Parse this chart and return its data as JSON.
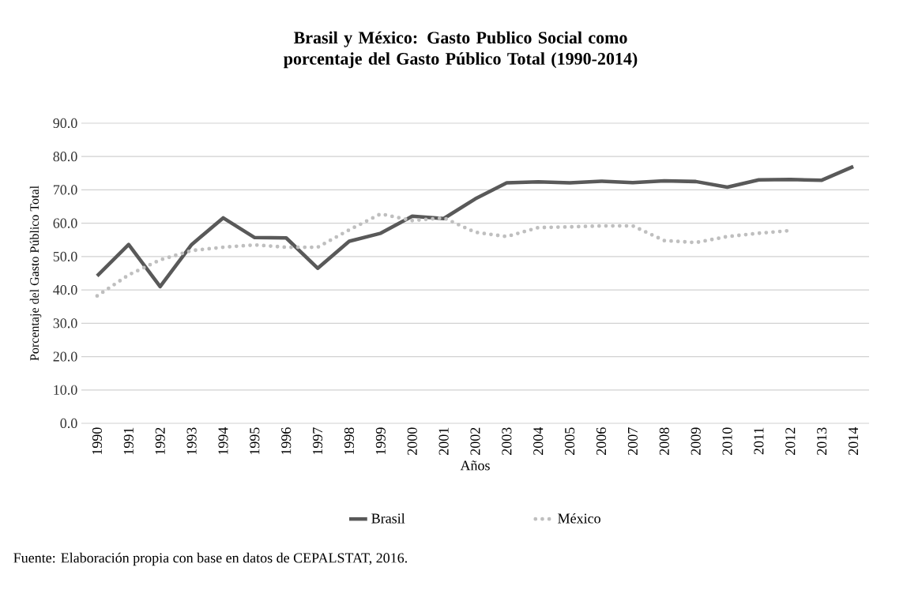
{
  "chart_data": {
    "type": "line",
    "title": "Brasil y México: Gasto Publico Social como porcentaje del Gasto Público Total (1990-2014)",
    "xlabel": "Años",
    "ylabel": "Porcentaje del Gasto Público Total",
    "categories": [
      "1990",
      "1991",
      "1992",
      "1993",
      "1994",
      "1995",
      "1996",
      "1997",
      "1998",
      "1999",
      "2000",
      "2001",
      "2002",
      "2003",
      "2004",
      "2005",
      "2006",
      "2007",
      "2008",
      "2009",
      "2010",
      "2011",
      "2012",
      "2013",
      "2014"
    ],
    "series": [
      {
        "name": "Brasil",
        "color": "#595959",
        "line_style": "solid",
        "values": [
          44.2,
          53.6,
          41.0,
          53.6,
          61.6,
          55.7,
          55.6,
          46.5,
          54.6,
          57.0,
          62.1,
          61.4,
          67.3,
          72.1,
          72.4,
          72.1,
          72.6,
          72.2,
          72.7,
          72.5,
          70.8,
          73.0,
          73.1,
          72.9,
          77.0
        ]
      },
      {
        "name": "México",
        "color": "#bfbfbf",
        "line_style": "dotted",
        "values": [
          38.2,
          44.5,
          49.0,
          51.8,
          52.8,
          53.5,
          52.8,
          52.8,
          58.0,
          62.8,
          60.8,
          61.6,
          57.3,
          56.0,
          58.7,
          58.9,
          59.2,
          59.2,
          54.8,
          54.2,
          56.0,
          57.0,
          57.8,
          null,
          null
        ]
      }
    ],
    "ylim": [
      0,
      90
    ],
    "yticks": [
      {
        "value": 0,
        "label": "0.0"
      },
      {
        "value": 10,
        "label": "10.0"
      },
      {
        "value": 20,
        "label": "20.0"
      },
      {
        "value": 30,
        "label": "30.0"
      },
      {
        "value": 40,
        "label": "40.0"
      },
      {
        "value": 50,
        "label": "50.0"
      },
      {
        "value": 60,
        "label": "60.0"
      },
      {
        "value": 70,
        "label": "70.0"
      },
      {
        "value": 80,
        "label": "80.0"
      },
      {
        "value": 90,
        "label": "90.0"
      }
    ],
    "grid": "y",
    "legend": "bottom",
    "annotations": [
      "Fuente: Elaboración propia con base en datos de CEPALSTAT, 2016."
    ]
  }
}
